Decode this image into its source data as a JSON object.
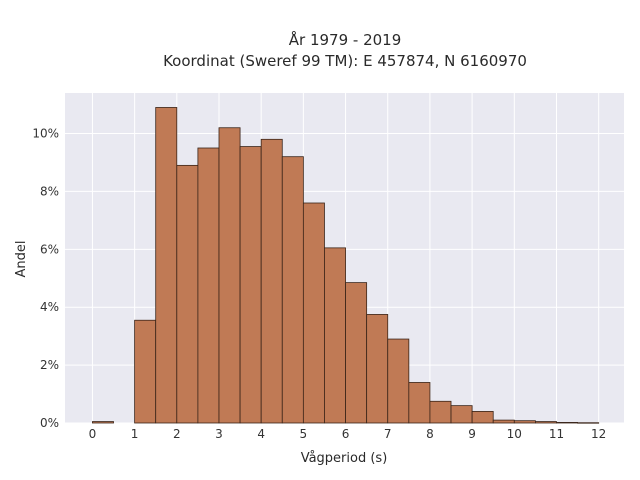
{
  "chart_data": {
    "type": "bar",
    "title_line1": "År 1979 - 2019",
    "title_line2": "Koordinat (Sweref 99 TM): E 457874, N 6160970",
    "xlabel": "Vågperiod (s)",
    "ylabel": "Andel",
    "bin_width": 0.5,
    "xlim": [
      -0.65,
      12.6
    ],
    "ylim": [
      0,
      11.4
    ],
    "x_ticks": [
      0,
      1,
      2,
      3,
      4,
      5,
      6,
      7,
      8,
      9,
      10,
      11,
      12
    ],
    "x_tick_labels": [
      "0",
      "1",
      "2",
      "3",
      "4",
      "5",
      "6",
      "7",
      "8",
      "9",
      "10",
      "11",
      "12"
    ],
    "y_ticks": [
      0,
      2,
      4,
      6,
      8,
      10
    ],
    "y_tick_labels": [
      "0%",
      "2%",
      "4%",
      "6%",
      "8%",
      "10%"
    ],
    "bins": [
      {
        "x0": 0.0,
        "value": 0.05
      },
      {
        "x0": 1.0,
        "value": 3.55
      },
      {
        "x0": 1.5,
        "value": 10.9
      },
      {
        "x0": 2.0,
        "value": 8.9
      },
      {
        "x0": 2.5,
        "value": 9.5
      },
      {
        "x0": 3.0,
        "value": 10.2
      },
      {
        "x0": 3.5,
        "value": 9.55
      },
      {
        "x0": 4.0,
        "value": 9.8
      },
      {
        "x0": 4.5,
        "value": 9.2
      },
      {
        "x0": 5.0,
        "value": 7.6
      },
      {
        "x0": 5.5,
        "value": 6.05
      },
      {
        "x0": 6.0,
        "value": 4.85
      },
      {
        "x0": 6.5,
        "value": 3.75
      },
      {
        "x0": 7.0,
        "value": 2.9
      },
      {
        "x0": 7.5,
        "value": 1.4
      },
      {
        "x0": 8.0,
        "value": 0.75
      },
      {
        "x0": 8.5,
        "value": 0.6
      },
      {
        "x0": 9.0,
        "value": 0.4
      },
      {
        "x0": 9.5,
        "value": 0.1
      },
      {
        "x0": 10.0,
        "value": 0.08
      },
      {
        "x0": 10.5,
        "value": 0.05
      },
      {
        "x0": 11.0,
        "value": 0.02
      },
      {
        "x0": 11.5,
        "value": 0.01
      }
    ],
    "grid": true,
    "colors": {
      "bar_fill": "#c07a55",
      "bar_stroke": "#3a2418",
      "plot_bg": "#e9e9f1",
      "grid": "#ffffff"
    }
  }
}
